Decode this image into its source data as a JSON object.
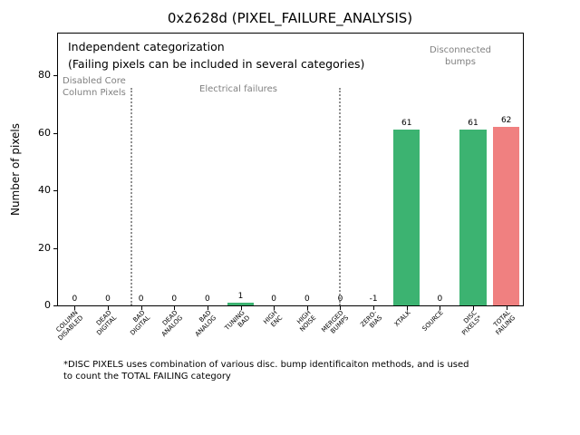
{
  "chart_data": {
    "type": "bar",
    "title": "0x2628d (PIXEL_FAILURE_ANALYSIS)",
    "xlabel": "",
    "ylabel": "Number of pixels",
    "categories": [
      "COLUMN\nDISABLED",
      "DEAD\nDIGITAL",
      "BAD\nDIGITAL",
      "DEAD\nANALOG",
      "BAD\nANALOG",
      "TUNING\nBAD",
      "HIGH\nENC",
      "HIGH\nNOISE",
      "MERGED\nBUMPS",
      "ZERO-\nBIAS",
      "XTALK",
      "SOURCE",
      "DISC\nPIXELS*",
      "TOTAL\nFAILING"
    ],
    "values": [
      0,
      0,
      0,
      0,
      0,
      1,
      0,
      0,
      0,
      -1,
      61,
      0,
      61,
      62
    ],
    "bar_colors": [
      "#3cb371",
      "#3cb371",
      "#3cb371",
      "#3cb371",
      "#3cb371",
      "#3cb371",
      "#3cb371",
      "#3cb371",
      "#3cb371",
      "#3cb371",
      "#3cb371",
      "#3cb371",
      "#3cb371",
      "#f08080"
    ],
    "yticks": [
      0,
      20,
      40,
      60,
      80
    ],
    "ylim": [
      0,
      94.5
    ],
    "bar_width_frac": 0.8,
    "grid": false,
    "legend": "none",
    "separator_fractions": [
      0.155,
      0.605
    ],
    "colors": {
      "category_green": "#3cb371",
      "total_failing_red": "#f08080",
      "divider_gray": "#909090",
      "section_label_gray": "#808080"
    }
  },
  "annotations": {
    "independent": "Independent categorization",
    "failing_note": "(Failing pixels can be included in several categories)",
    "section_disabled": "Disabled Core\nColumn Pixels",
    "section_electrical": "Electrical failures",
    "section_bumps": "Disconnected\nbumps"
  },
  "footnote": "*DISC PIXELS uses combination of various disc. bump identificaiton methods, and is used\nto count the TOTAL FAILING category"
}
